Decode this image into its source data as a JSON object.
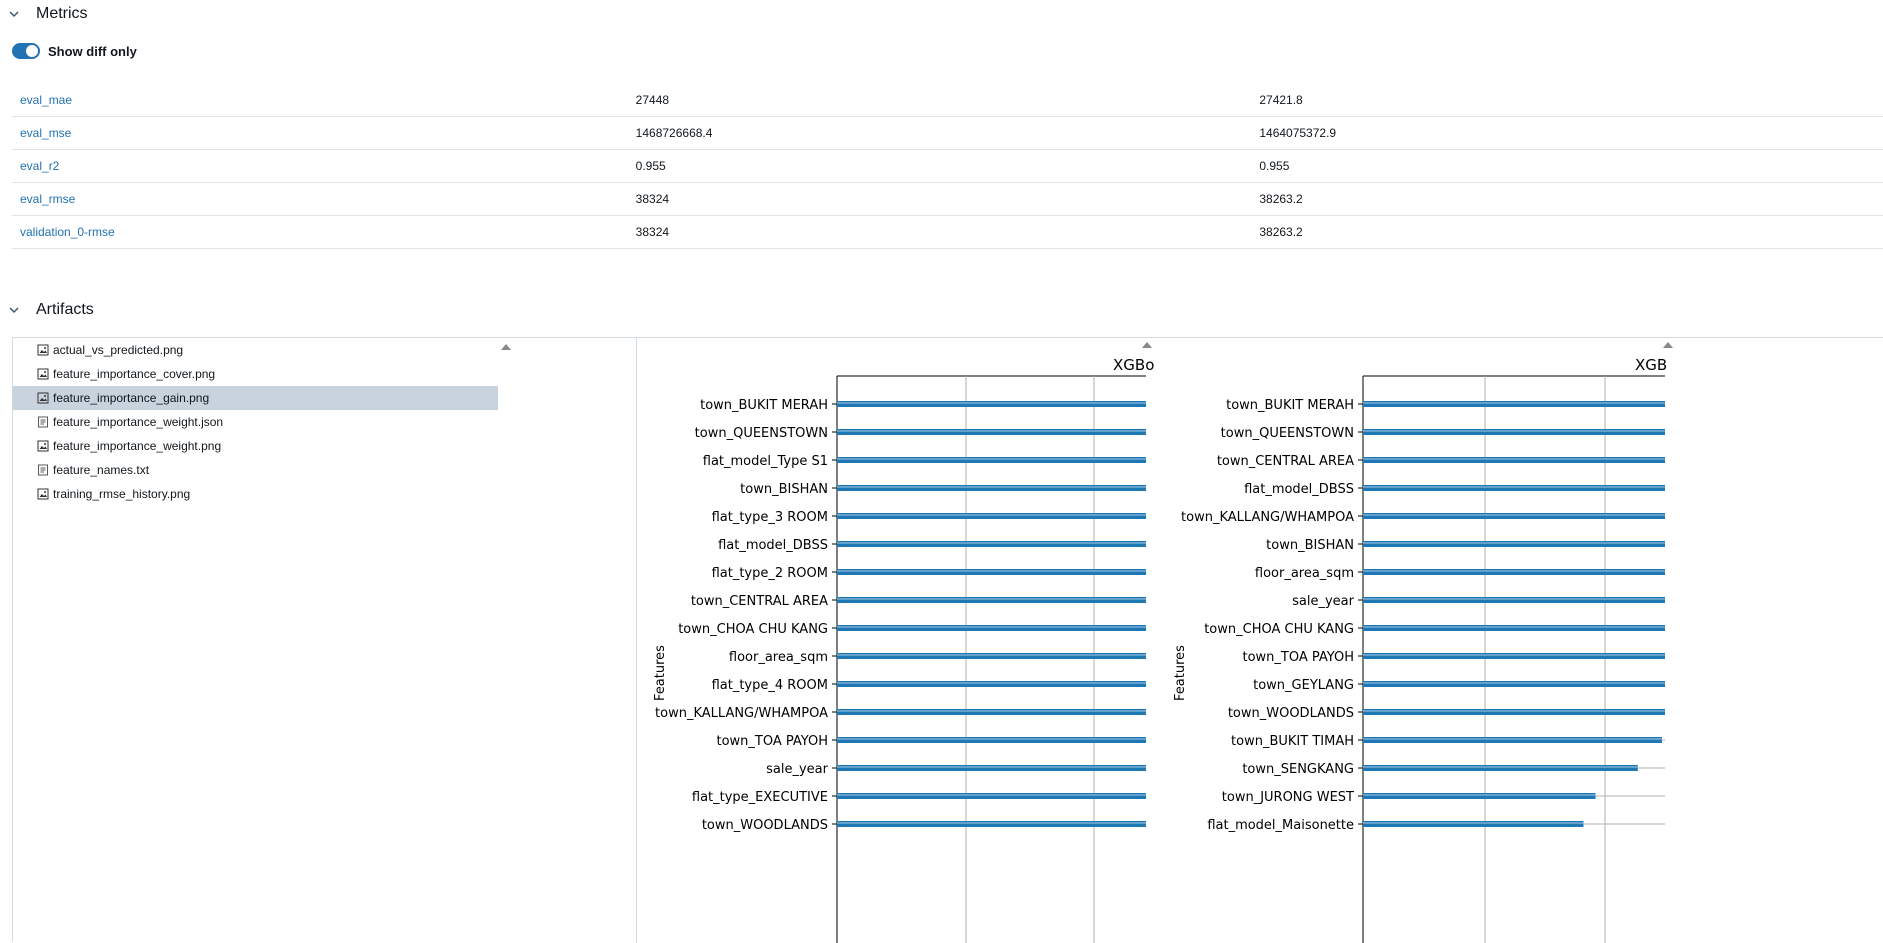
{
  "metrics_section": {
    "title": "Metrics",
    "toggle_label": "Show diff only",
    "toggle_on": true
  },
  "metrics": [
    {
      "name": "eval_mae",
      "a": "27448",
      "b": "27421.8"
    },
    {
      "name": "eval_mse",
      "a": "1468726668.4",
      "b": "1464075372.9"
    },
    {
      "name": "eval_r2",
      "a": "0.955",
      "b": "0.955"
    },
    {
      "name": "eval_rmse",
      "a": "38324",
      "b": "38263.2"
    },
    {
      "name": "validation_0-rmse",
      "a": "38324",
      "b": "38263.2"
    }
  ],
  "artifacts_section": {
    "title": "Artifacts"
  },
  "files": [
    {
      "name": "actual_vs_predicted.png",
      "icon": "image-file-icon",
      "selected": false
    },
    {
      "name": "feature_importance_cover.png",
      "icon": "image-file-icon",
      "selected": false
    },
    {
      "name": "feature_importance_gain.png",
      "icon": "image-file-icon",
      "selected": true
    },
    {
      "name": "feature_importance_weight.json",
      "icon": "text-file-icon",
      "selected": false
    },
    {
      "name": "feature_importance_weight.png",
      "icon": "image-file-icon",
      "selected": false
    },
    {
      "name": "feature_names.txt",
      "icon": "text-file-icon",
      "selected": false
    },
    {
      "name": "training_rmse_history.png",
      "icon": "image-file-icon",
      "selected": false
    }
  ],
  "colors": {
    "accent": "#2272b4",
    "bar": "#1f77b4",
    "selected": "#c8d3de"
  },
  "chart_data": [
    {
      "type": "bar",
      "orientation": "horizontal",
      "title": "XGBo",
      "ylabel": "Features",
      "categories": [
        "town_BUKIT MERAH",
        "town_QUEENSTOWN",
        "flat_model_Type S1",
        "town_BISHAN",
        "flat_type_3 ROOM",
        "flat_model_DBSS",
        "flat_type_2 ROOM",
        "town_CENTRAL AREA",
        "town_CHOA CHU KANG",
        "floor_area_sqm",
        "flat_type_4 ROOM",
        "town_KALLANG/WHAMPOA",
        "town_TOA PAYOH",
        "sale_year",
        "flat_type_EXECUTIVE",
        "town_WOODLANDS"
      ],
      "values_visible_fraction": [
        1,
        1,
        1,
        1,
        1,
        1,
        1,
        1,
        1,
        1,
        1,
        1,
        1,
        1,
        1,
        1
      ],
      "grid": true
    },
    {
      "type": "bar",
      "orientation": "horizontal",
      "title": "XGB",
      "ylabel": "Features",
      "categories": [
        "town_BUKIT MERAH",
        "town_QUEENSTOWN",
        "town_CENTRAL AREA",
        "flat_model_DBSS",
        "town_KALLANG/WHAMPOA",
        "town_BISHAN",
        "floor_area_sqm",
        "sale_year",
        "town_CHOA CHU KANG",
        "town_TOA PAYOH",
        "town_GEYLANG",
        "town_WOODLANDS",
        "town_BUKIT TIMAH",
        "town_SENGKANG",
        "town_JURONG WEST",
        "flat_model_Maisonette"
      ],
      "values_visible_fraction": [
        1,
        1,
        1,
        1,
        1,
        1,
        1,
        1,
        1,
        1,
        1,
        1,
        0.99,
        0.91,
        0.77,
        0.73
      ],
      "grid": true
    }
  ]
}
